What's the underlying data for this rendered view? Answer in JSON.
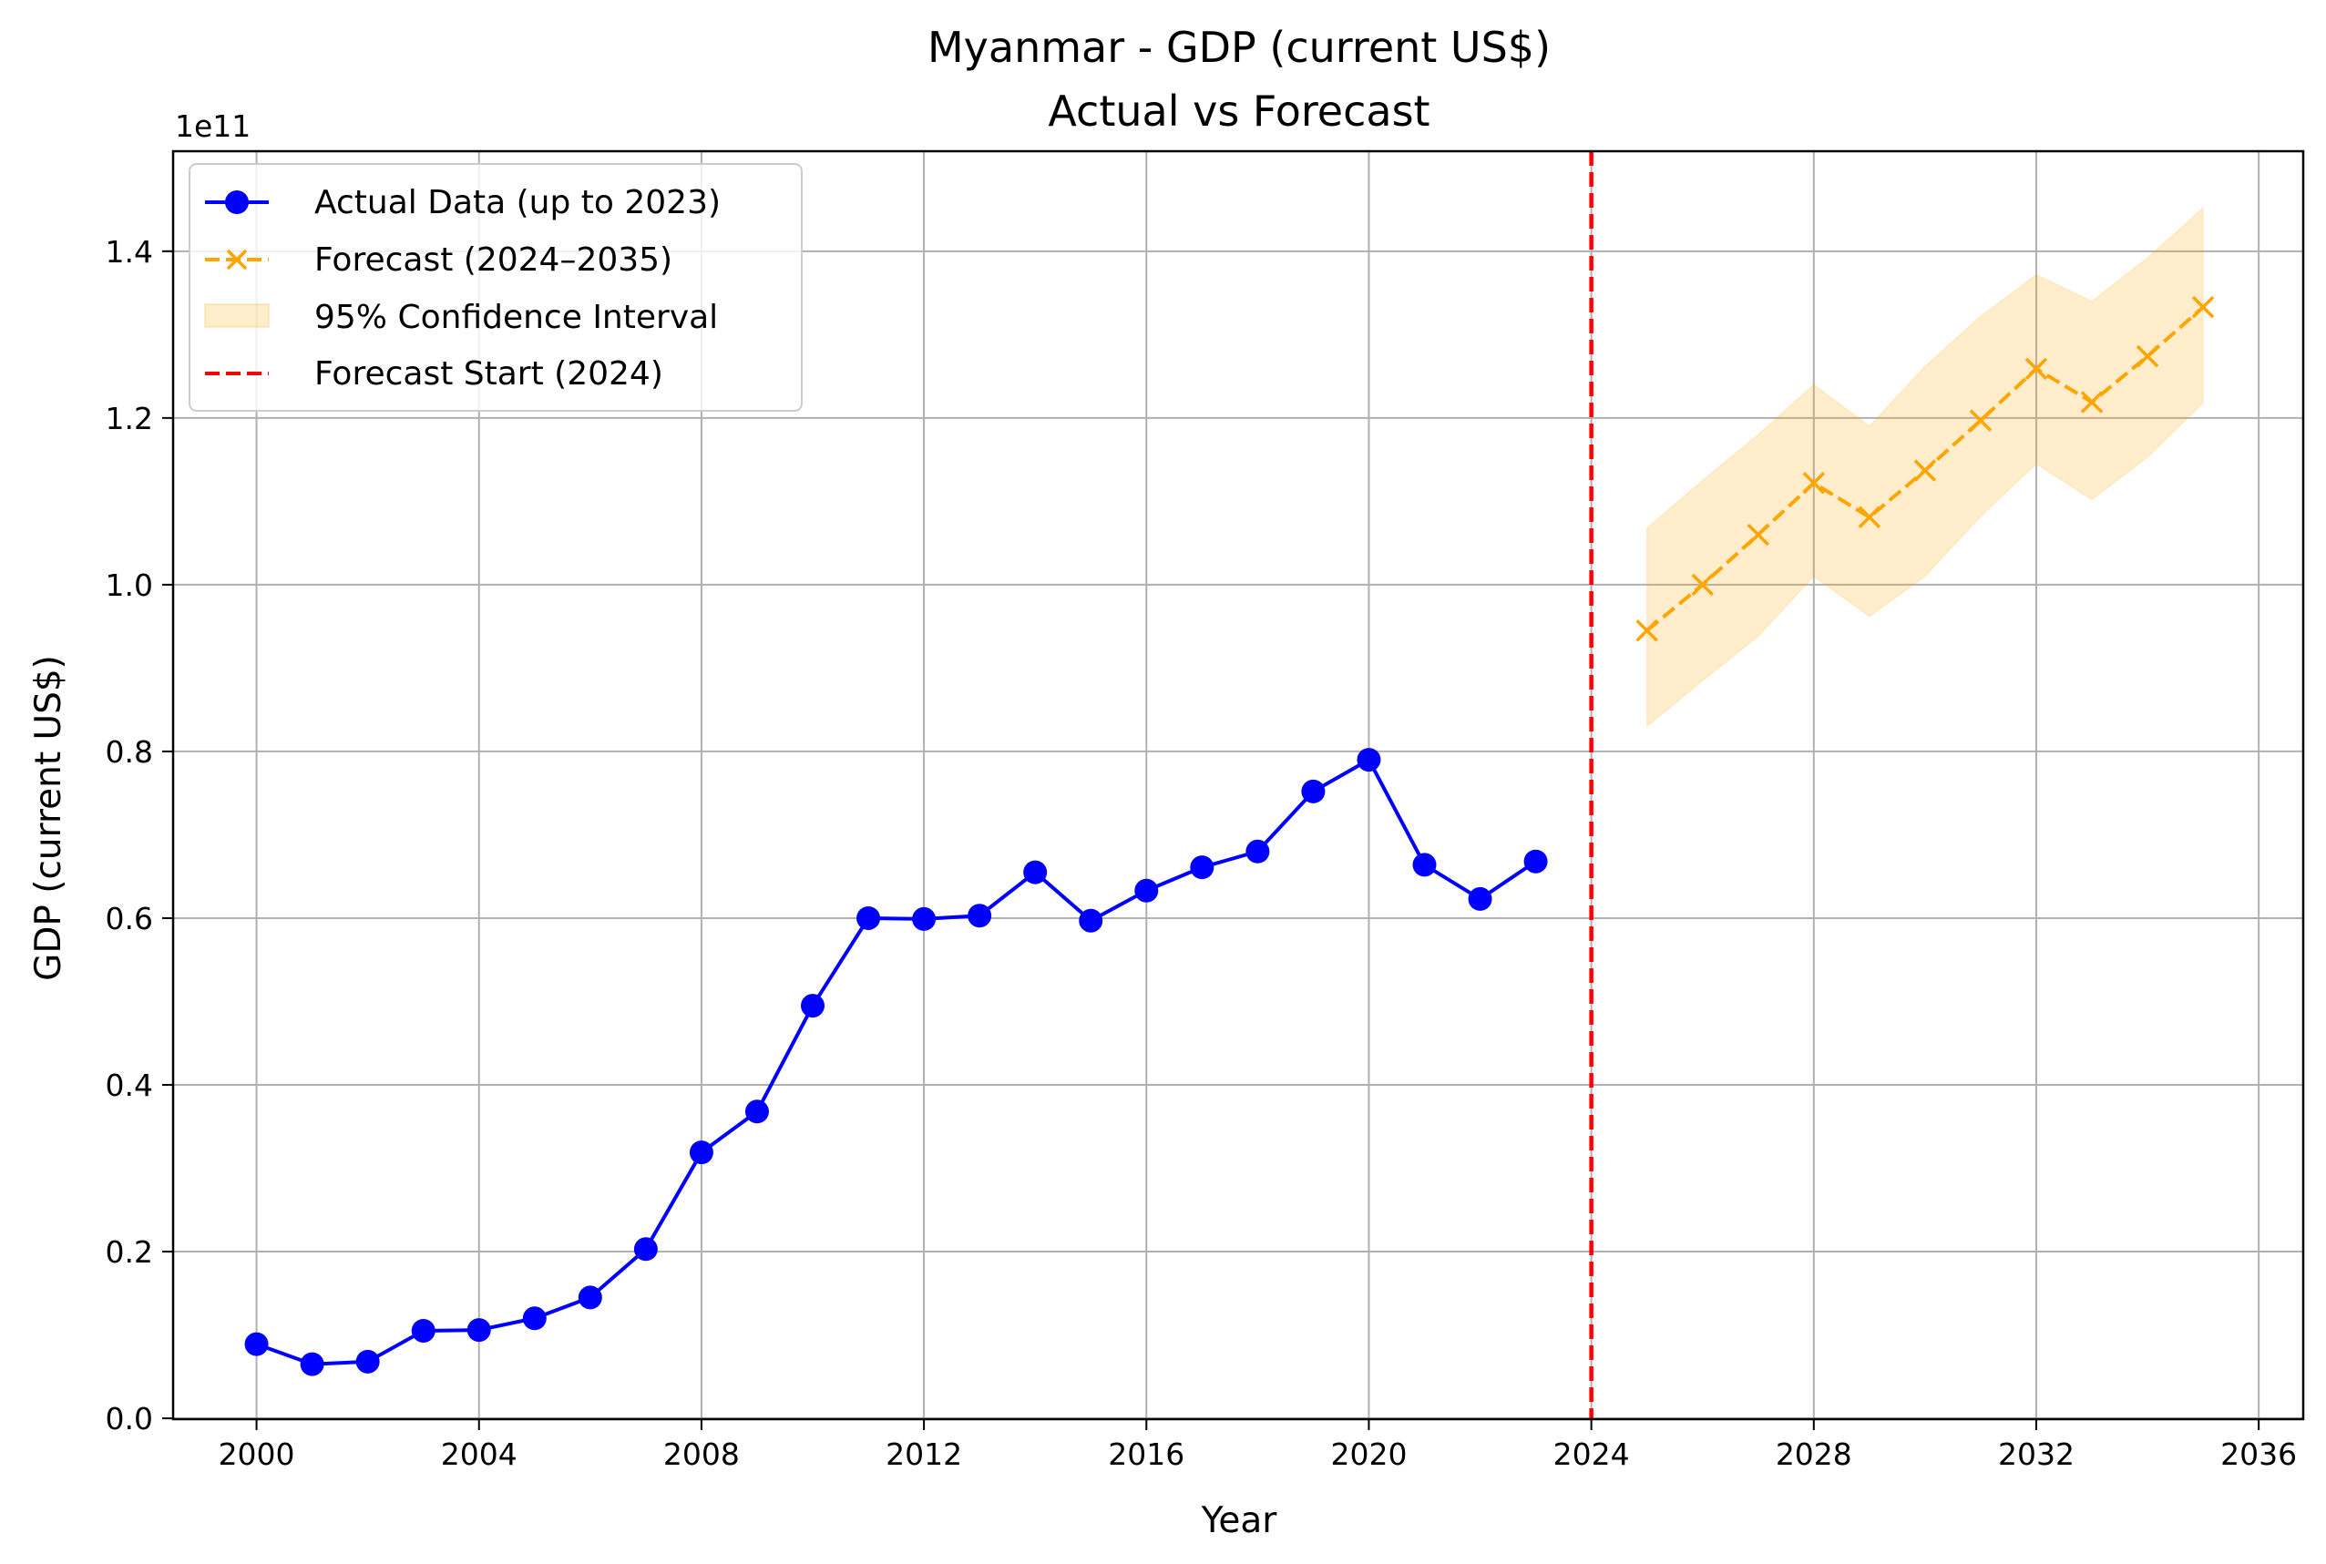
{
  "chart_data": {
    "type": "line",
    "title": "Myanmar - GDP (current US$)",
    "subtitle": "Actual vs Forecast",
    "xlabel": "Year",
    "ylabel": "GDP (current US$)",
    "y_scale_label": "1e11",
    "y_multiplier": 100000000000.0,
    "xlim": [
      1998.5,
      2036.8
    ],
    "ylim": [
      -0.001,
      1.52
    ],
    "x_ticks": [
      2000,
      2004,
      2008,
      2012,
      2016,
      2020,
      2024,
      2028,
      2032,
      2036
    ],
    "y_ticks": [
      0.0,
      0.2,
      0.4,
      0.6,
      0.8,
      1.0,
      1.2,
      1.4
    ],
    "y_tick_labels": [
      "0.0",
      "0.2",
      "0.4",
      "0.6",
      "0.8",
      "1.0",
      "1.2",
      "1.4"
    ],
    "grid": true,
    "legend_position": "top-left",
    "forecast_start": 2024,
    "series": [
      {
        "name": "Actual Data (up to 2023)",
        "kind": "line-marker-circle",
        "color": "#0000ff",
        "x": [
          2000,
          2001,
          2002,
          2003,
          2004,
          2005,
          2006,
          2007,
          2008,
          2009,
          2010,
          2011,
          2012,
          2013,
          2014,
          2015,
          2016,
          2017,
          2018,
          2019,
          2020,
          2021,
          2022,
          2023
        ],
        "values": [
          0.089,
          0.065,
          0.068,
          0.105,
          0.106,
          0.12,
          0.145,
          0.203,
          0.319,
          0.368,
          0.495,
          0.6,
          0.599,
          0.603,
          0.655,
          0.597,
          0.633,
          0.661,
          0.68,
          0.752,
          0.79,
          0.664,
          0.623,
          0.668
        ]
      },
      {
        "name": "Forecast (2024–2035)",
        "kind": "dashed-marker-x",
        "color": "#ffa500",
        "x": [
          2025,
          2026,
          2027,
          2028,
          2029,
          2030,
          2031,
          2032,
          2033,
          2034,
          2035
        ],
        "values": [
          0.945,
          1.0,
          1.06,
          1.122,
          1.081,
          1.137,
          1.197,
          1.259,
          1.219,
          1.274,
          1.333
        ]
      },
      {
        "name": "95% Confidence Interval",
        "kind": "band",
        "color": "#ffa500",
        "x": [
          2025,
          2026,
          2027,
          2028,
          2029,
          2030,
          2031,
          2032,
          2033,
          2034,
          2035
        ],
        "lower": [
          0.83,
          0.885,
          0.938,
          1.01,
          0.962,
          1.01,
          1.082,
          1.145,
          1.102,
          1.153,
          1.218
        ],
        "upper": [
          1.068,
          1.125,
          1.18,
          1.24,
          1.19,
          1.262,
          1.322,
          1.372,
          1.34,
          1.392,
          1.452
        ]
      },
      {
        "name": "Forecast Start (2024)",
        "kind": "vline-dashed",
        "color": "#ff0000"
      }
    ]
  }
}
